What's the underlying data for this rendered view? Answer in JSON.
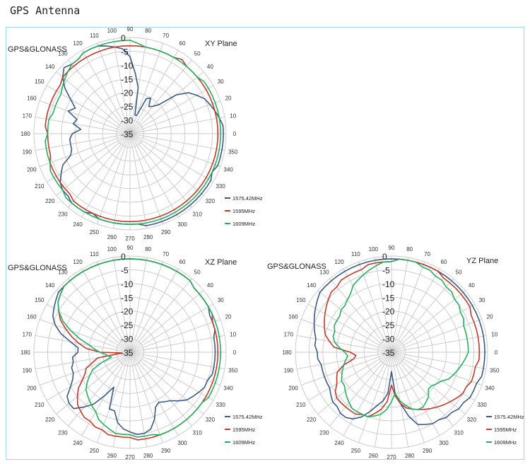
{
  "page_title": "GPS Antenna",
  "colors": {
    "s1575": "#3a5a80",
    "s1595": "#c0392b",
    "s1609": "#27ae60",
    "grid": "#c8c8c8",
    "frame": "#9fd4e6"
  },
  "chart_data": [
    {
      "type": "polar-line",
      "title": "XY Plane",
      "subtitle": "GPS&GLONASS",
      "radial_range": [
        -35,
        0
      ],
      "radial_ticks": [
        "0",
        "-5",
        "-10",
        "-15",
        "-20",
        "-25",
        "-30",
        "-35"
      ],
      "angle_ticks": [
        "0",
        "10",
        "20",
        "30",
        "40",
        "50",
        "60",
        "70",
        "80",
        "90",
        "100",
        "110",
        "120",
        "130",
        "140",
        "150",
        "160",
        "170",
        "180",
        "190",
        "200",
        "210",
        "220",
        "230",
        "240",
        "250",
        "260",
        "270",
        "280",
        "290",
        "300",
        "310",
        "320",
        "330",
        "340",
        "350"
      ],
      "legend_position": "bottom-right",
      "series": [
        {
          "name": "1575.42MHz",
          "values": [
            -1,
            -1,
            -2,
            -3,
            -4,
            -5,
            -7,
            -9,
            -13,
            -20,
            -22,
            -23,
            -20,
            -21,
            -28,
            -28,
            -18,
            -13,
            -7,
            -4,
            -3,
            -2,
            -1,
            -1,
            -1,
            -2,
            -2,
            -1,
            -3,
            -6,
            -10,
            -13,
            -11,
            -15,
            -14,
            -17,
            -14,
            -13,
            -13,
            -13,
            -12,
            -8,
            -6,
            -4,
            -3,
            -3,
            -2,
            -2,
            -2,
            -3,
            -2,
            -2,
            -2,
            -2,
            -2,
            -2,
            -1,
            -1,
            -1,
            -1,
            -1,
            -1,
            -1,
            -1,
            -1,
            -1,
            -1,
            -2,
            -1,
            -1,
            -1,
            -1
          ]
        },
        {
          "name": "1595MHz",
          "values": [
            -3,
            -3,
            -3,
            -3,
            -3,
            -3,
            -3,
            -3,
            -3,
            -3,
            -3,
            -2,
            -3,
            -3,
            -3,
            -3,
            -3,
            -3,
            -3,
            -3,
            -3,
            -3,
            -3,
            -3,
            -3,
            -3,
            -3,
            -3,
            -3,
            -4,
            -4,
            -4,
            -4,
            -4,
            -4,
            -4,
            -5,
            -5,
            -5,
            -5,
            -4,
            -4,
            -4,
            -4,
            -4,
            -4,
            -3,
            -3,
            -3,
            -3,
            -3,
            -3,
            -3,
            -3,
            -3,
            -3,
            -3,
            -3,
            -3,
            -3,
            -3,
            -3,
            -3,
            -3,
            -3,
            -3,
            -3,
            -3,
            -3,
            -3,
            -3,
            -3
          ]
        },
        {
          "name": "1609MHz",
          "values": [
            -2,
            -2,
            -2,
            -2,
            -2,
            -2,
            -2,
            -2,
            -3,
            -3,
            -3,
            -3,
            -3,
            -3,
            -3,
            -3,
            -3,
            -2,
            -1,
            -1,
            -1,
            -1,
            -1,
            -1,
            -1,
            -2,
            -2,
            -3,
            -4,
            -5,
            -6,
            -6,
            -6,
            -6,
            -5,
            -5,
            -5,
            -4,
            -4,
            -4,
            -4,
            -3,
            -3,
            -3,
            -3,
            -2,
            -2,
            -2,
            -2,
            -2,
            -2,
            -2,
            -2,
            -2,
            -2,
            -2,
            -2,
            -2,
            -2,
            -2,
            -2,
            -2,
            -2,
            -2,
            -2,
            -2,
            -2,
            -2,
            -2,
            -2,
            -2,
            -2
          ]
        }
      ]
    },
    {
      "type": "polar-line",
      "title": "XZ Plane",
      "subtitle": "GPS&GLONASS",
      "radial_range": [
        -35,
        0
      ],
      "radial_ticks": [
        "0",
        "-5",
        "-10",
        "-15",
        "-20",
        "-25",
        "-30",
        "-35"
      ],
      "angle_ticks": [
        "0",
        "10",
        "20",
        "30",
        "40",
        "50",
        "60",
        "70",
        "80",
        "90",
        "100",
        "110",
        "120",
        "130",
        "140",
        "150",
        "160",
        "170",
        "180",
        "190",
        "200",
        "210",
        "220",
        "230",
        "240",
        "250",
        "260",
        "270",
        "280",
        "290",
        "300",
        "310",
        "320",
        "330",
        "340",
        "350"
      ],
      "legend_position": "bottom-right",
      "series": [
        {
          "name": "1575.42MHz",
          "values": [
            -4,
            -4,
            -4,
            -3,
            -3,
            -3,
            -2,
            -2,
            -2,
            -2,
            -1,
            -1,
            -1,
            -1,
            -1,
            -1,
            -1,
            -1,
            -1,
            -1,
            -1,
            -1,
            -1,
            -1,
            -1,
            -1,
            -1,
            -1,
            -1,
            -2,
            -3,
            -4,
            -6,
            -9,
            -13,
            -16,
            -16,
            -14,
            -14,
            -13,
            -13,
            -12,
            -10,
            -7,
            -6,
            -6,
            -9,
            -12,
            -17,
            -21,
            -13,
            -13,
            -9,
            -7,
            -6,
            -5,
            -5,
            -6,
            -9,
            -13,
            -14,
            -13,
            -12,
            -10,
            -8,
            -7,
            -6,
            -5,
            -5,
            -4,
            -4,
            -4
          ]
        },
        {
          "name": "1595MHz",
          "values": [
            -3,
            -3,
            -3,
            -3,
            -3,
            -2,
            -2,
            -2,
            -2,
            -2,
            -1,
            -1,
            -1,
            -1,
            -1,
            -1,
            -1,
            -1,
            -1,
            -1,
            -1,
            -1,
            -1,
            -1,
            -1,
            -1,
            -1,
            -1,
            -2,
            -3,
            -5,
            -7,
            -10,
            -13,
            -16,
            -19,
            -24,
            -32,
            -23,
            -21,
            -18,
            -17,
            -15,
            -12,
            -10,
            -8,
            -7,
            -6,
            -6,
            -5,
            -5,
            -4,
            -4,
            -4,
            -4,
            -3,
            -3,
            -3,
            -3,
            -3,
            -3,
            -3,
            -3,
            -3,
            -3,
            -3,
            -3,
            -3,
            -3,
            -3,
            -3,
            -3
          ]
        },
        {
          "name": "1609MHz",
          "values": [
            -2,
            -2,
            -2,
            -2,
            -2,
            -2,
            -2,
            -2,
            -2,
            -2,
            -1,
            -1,
            -1,
            -1,
            -1,
            -1,
            -1,
            -1,
            -1,
            -1,
            -1,
            -1,
            -1,
            -1,
            -1,
            -1,
            -1,
            -1,
            -2,
            -3,
            -5,
            -8,
            -12,
            -16,
            -20,
            -22,
            -24,
            -26,
            -27,
            -28,
            -24,
            -20,
            -18,
            -16,
            -14,
            -13,
            -12,
            -11,
            -10,
            -8,
            -7,
            -6,
            -5,
            -5,
            -5,
            -4,
            -4,
            -4,
            -3,
            -3,
            -3,
            -3,
            -3,
            -3,
            -3,
            -3,
            -2,
            -2,
            -2,
            -2,
            -2,
            -2
          ]
        }
      ]
    },
    {
      "type": "polar-line",
      "title": "YZ Plane",
      "subtitle": "GPS&GLONASS",
      "radial_range": [
        -35,
        0
      ],
      "radial_ticks": [
        "0",
        "-5",
        "-10",
        "-15",
        "-20",
        "-25",
        "-30",
        "-35"
      ],
      "angle_ticks": [
        "0",
        "10",
        "20",
        "30",
        "40",
        "50",
        "60",
        "70",
        "80",
        "90",
        "100",
        "110",
        "120",
        "130",
        "140",
        "150",
        "160",
        "170",
        "180",
        "190",
        "200",
        "210",
        "220",
        "230",
        "240",
        "250",
        "260",
        "270",
        "280",
        "290",
        "300",
        "310",
        "320",
        "330",
        "340",
        "350"
      ],
      "legend_position": "bottom-right",
      "series": [
        {
          "name": "1575.42MHz",
          "values": [
            -1,
            -1,
            -1,
            -1,
            -1,
            -1,
            -1,
            -1,
            -1,
            -1,
            -1,
            -1,
            -1,
            -1,
            -1,
            -1,
            -1,
            -1,
            -1,
            -1,
            -1,
            -1,
            -1,
            -1,
            -1,
            -1,
            -1,
            -1,
            -1,
            -2,
            -3,
            -4,
            -5,
            -6,
            -7,
            -7,
            -8,
            -8,
            -9,
            -9,
            -9,
            -9,
            -9,
            -8,
            -7,
            -7,
            -6,
            -6,
            -7,
            -9,
            -12,
            -15,
            -17,
            -20,
            -28,
            -20,
            -16,
            -11,
            -7,
            -6,
            -5,
            -5,
            -4,
            -4,
            -3,
            -3,
            -2,
            -2,
            -2,
            -1,
            -1,
            -1
          ]
        },
        {
          "name": "1595MHz",
          "values": [
            -3,
            -3,
            -3,
            -3,
            -3,
            -3,
            -2,
            -2,
            -2,
            -2,
            -2,
            -2,
            -1,
            -1,
            -1,
            -1,
            -1,
            -1,
            -2,
            -2,
            -2,
            -2,
            -3,
            -3,
            -3,
            -3,
            -4,
            -4,
            -5,
            -6,
            -7,
            -8,
            -9,
            -10,
            -12,
            -14,
            -20,
            -22,
            -21,
            -17,
            -14,
            -13,
            -12,
            -10,
            -9,
            -9,
            -9,
            -9,
            -9,
            -10,
            -10,
            -12,
            -14,
            -17,
            -23,
            -19,
            -16,
            -14,
            -13,
            -12,
            -11,
            -10,
            -9,
            -8,
            -7,
            -6,
            -5,
            -5,
            -4,
            -4,
            -4,
            -3
          ]
        },
        {
          "name": "1609MHz",
          "values": [
            -7,
            -7,
            -7,
            -7,
            -7,
            -6,
            -6,
            -5,
            -5,
            -4,
            -4,
            -3,
            -3,
            -2,
            -2,
            -1,
            -1,
            -1,
            -2,
            -2,
            -3,
            -4,
            -5,
            -6,
            -7,
            -9,
            -10,
            -11,
            -11,
            -12,
            -12,
            -12,
            -13,
            -13,
            -14,
            -16,
            -18,
            -19,
            -18,
            -17,
            -16,
            -15,
            -14,
            -14,
            -13,
            -12,
            -11,
            -10,
            -10,
            -10,
            -10,
            -11,
            -12,
            -14,
            -17,
            -20,
            -17,
            -15,
            -13,
            -12,
            -12,
            -13,
            -14,
            -16,
            -16,
            -15,
            -14,
            -12,
            -11,
            -10,
            -9,
            -8
          ]
        }
      ]
    }
  ]
}
